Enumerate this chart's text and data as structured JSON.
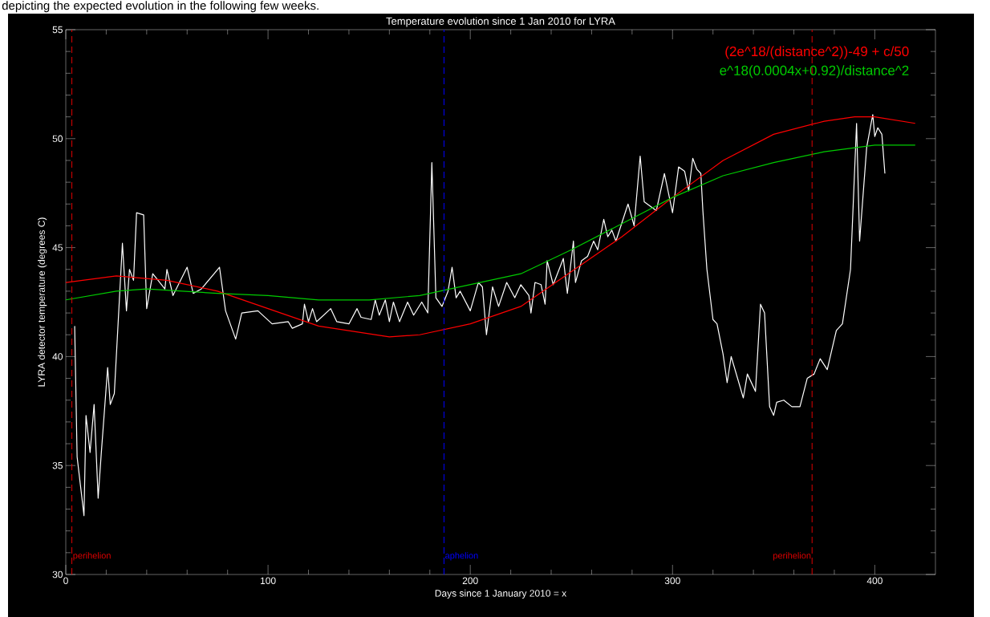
{
  "chart_data": {
    "type": "line",
    "title": "Temperature evolution since 1 Jan 2010 for LYRA",
    "xlabel": "Days since 1 January 2010 = x",
    "ylabel": "LYRA detector temperature (degrees C)",
    "annotations": [
      "depicting the expected evolution in the following few weeks."
    ],
    "xlim": [
      0,
      430
    ],
    "ylim": [
      30,
      55
    ],
    "xticks": [
      0,
      100,
      200,
      300,
      400
    ],
    "yticks": [
      30,
      35,
      40,
      45,
      50,
      55
    ],
    "series": [
      {
        "color": "#ffffff",
        "x": [
          4.4,
          5.6,
          9,
          10,
          12,
          14,
          16,
          17.5,
          20.7,
          22,
          24,
          28,
          30,
          31.5,
          33.5,
          35,
          38.5,
          40,
          43,
          49,
          50,
          53,
          60,
          63,
          67,
          76,
          79,
          84,
          87,
          95,
          102,
          110,
          112,
          117,
          118,
          120,
          122,
          124,
          131,
          134,
          140,
          144,
          146,
          151,
          153,
          155,
          158,
          160,
          162,
          165,
          169,
          172,
          176,
          179,
          181,
          183,
          186,
          189,
          191,
          193,
          195,
          200,
          204,
          206,
          208,
          211,
          214,
          218,
          222,
          225,
          229,
          230,
          232,
          235,
          237,
          238,
          241,
          246,
          248,
          251,
          252,
          255,
          258,
          261,
          263,
          266,
          268,
          270,
          272,
          278,
          281,
          284,
          286,
          292,
          296,
          300,
          303,
          306,
          308,
          310,
          312,
          314,
          315,
          317,
          320,
          322,
          325,
          327,
          329,
          335,
          337,
          341,
          343.5,
          345.5,
          348,
          350,
          351.5,
          355,
          359,
          363,
          366.6,
          370,
          373,
          376.5,
          381,
          384,
          388,
          391,
          392.5,
          396,
          399,
          400,
          401.5,
          403.5,
          405
        ],
        "values": [
          41.4,
          35.4,
          32.7,
          37.3,
          35.6,
          37.8,
          33.5,
          35.5,
          39.5,
          37.8,
          38.3,
          45.2,
          42.1,
          44.0,
          43.5,
          46.6,
          46.5,
          42.2,
          43.8,
          43.1,
          44.0,
          42.8,
          44.1,
          42.9,
          43.1,
          44.1,
          42.1,
          40.8,
          42.0,
          42.1,
          41.5,
          41.6,
          41.3,
          41.5,
          42.4,
          41.6,
          42.2,
          41.6,
          42.2,
          41.6,
          41.5,
          42.2,
          41.8,
          41.7,
          42.6,
          41.9,
          42.6,
          41.6,
          42.5,
          41.6,
          42.5,
          41.9,
          42.5,
          42.0,
          48.9,
          42.7,
          42.3,
          43.0,
          44.1,
          42.7,
          43.0,
          42.1,
          43.4,
          43.2,
          41.0,
          43.2,
          42.3,
          43.4,
          42.7,
          43.3,
          42.8,
          42.0,
          43.4,
          43.3,
          42.4,
          44.4,
          43.3,
          44.5,
          42.9,
          45.3,
          43.4,
          44.4,
          44.6,
          45.3,
          44.9,
          46.3,
          45.5,
          45.8,
          45.3,
          47.0,
          46.0,
          49.2,
          47.1,
          46.7,
          48.4,
          46.6,
          48.7,
          48.5,
          47.6,
          49.1,
          48.6,
          48.4,
          46.7,
          44.0,
          41.7,
          41.5,
          40.1,
          38.8,
          40.0,
          38.1,
          39.2,
          38.4,
          42.4,
          42.0,
          37.7,
          37.3,
          37.9,
          38.0,
          37.7,
          37.7,
          39.0,
          39.2,
          39.9,
          39.4,
          41.2,
          41.5,
          44.0,
          50.7,
          45.3,
          49.6,
          51.1,
          50.1,
          50.5,
          50.2,
          48.4
        ]
      },
      {
        "name": "(2e^18/(distance^2))-49 + c/50",
        "color": "#ff0000",
        "x": [
          0,
          25,
          50,
          75,
          100,
          125,
          160,
          175,
          200,
          225,
          250,
          275,
          300,
          325,
          350,
          375,
          390,
          400,
          420
        ],
        "values": [
          43.4,
          43.7,
          43.5,
          43.0,
          42.2,
          41.4,
          40.9,
          41.0,
          41.5,
          42.3,
          43.9,
          45.5,
          47.3,
          49.0,
          50.2,
          50.8,
          51.0,
          51.0,
          50.7
        ]
      },
      {
        "name": "e^18(0.0004x+0.92)/distance^2",
        "color": "#00cc00",
        "x": [
          0,
          25,
          40,
          75,
          100,
          125,
          150,
          175,
          190,
          225,
          250,
          275,
          300,
          325,
          350,
          375,
          400,
          420
        ],
        "values": [
          42.6,
          43.0,
          43.1,
          42.9,
          42.8,
          42.6,
          42.6,
          42.8,
          43.1,
          43.8,
          44.9,
          46.1,
          47.3,
          48.3,
          48.9,
          49.4,
          49.7,
          49.7
        ]
      }
    ],
    "ref_lines": [
      {
        "axis": "x",
        "value": 3,
        "label": "perihelion",
        "color": "#dd0000",
        "line_style": "dashed"
      },
      {
        "axis": "x",
        "value": 187,
        "label": "aphelion",
        "color": "#0000ff",
        "line_style": "dashed"
      },
      {
        "axis": "x",
        "value": 369,
        "label": "perihelion",
        "color": "#dd0000",
        "line_style": "dashed"
      }
    ]
  }
}
